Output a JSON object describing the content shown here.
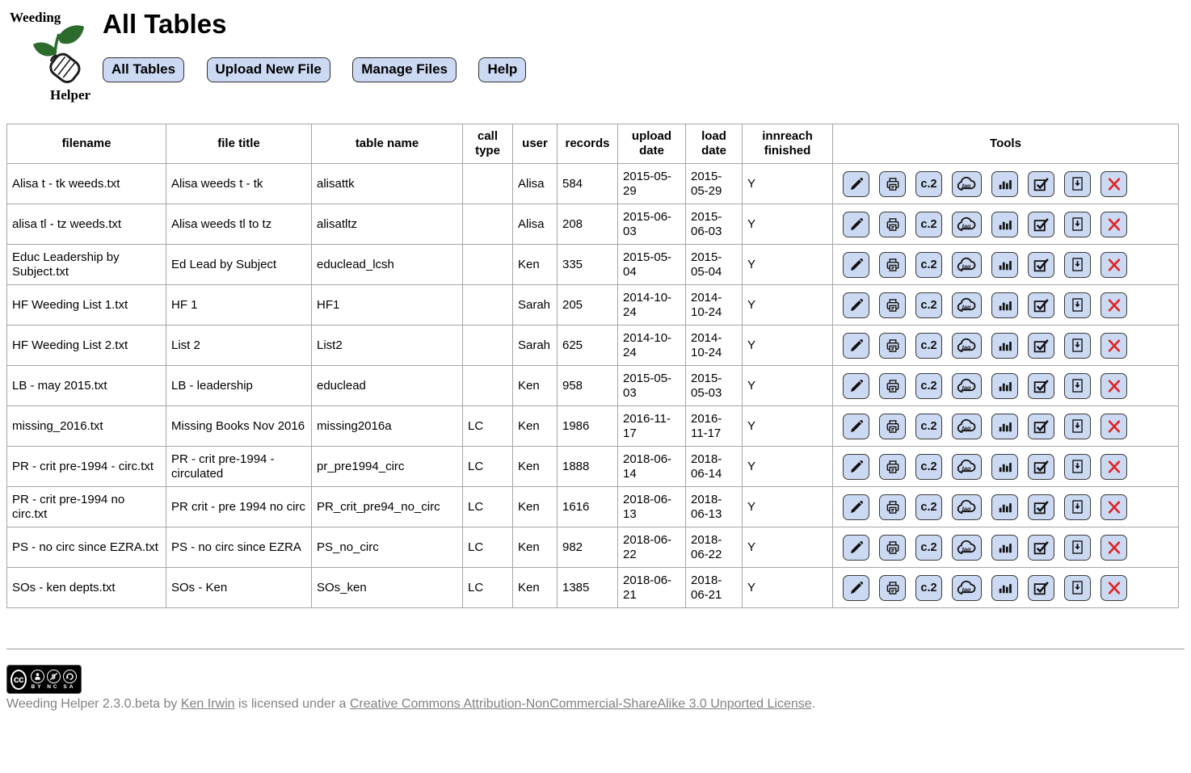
{
  "app": {
    "logo_top": "Weeding",
    "logo_bottom": "Helper"
  },
  "page": {
    "title": "All Tables"
  },
  "nav": {
    "buttons": [
      {
        "label": "All Tables"
      },
      {
        "label": "Upload New File"
      },
      {
        "label": "Manage Files"
      },
      {
        "label": "Help"
      }
    ]
  },
  "colors": {
    "button_bg": "#ccd9f2",
    "button_border": "#2f2f2f",
    "table_border": "#a6a6a6",
    "delete_red": "#e02424",
    "leaf_green": "#2d6b2d",
    "footer_text": "#818181"
  },
  "table": {
    "headers": [
      "filename",
      "file title",
      "table name",
      "call type",
      "user",
      "records",
      "upload date",
      "load date",
      "innreach finished",
      "Tools"
    ],
    "tools": [
      {
        "name": "edit",
        "icon": "pencil-icon",
        "label": ""
      },
      {
        "name": "print",
        "icon": "printer-icon",
        "label": ""
      },
      {
        "name": "copy2",
        "icon": "c2-icon",
        "label": "c.2"
      },
      {
        "name": "tag-cloud",
        "icon": "tag-cloud-icon",
        "label": "tag"
      },
      {
        "name": "stats",
        "icon": "bar-chart-icon",
        "label": ""
      },
      {
        "name": "checklist",
        "icon": "checkbox-icon",
        "label": ""
      },
      {
        "name": "download",
        "icon": "download-icon",
        "label": ""
      },
      {
        "name": "delete",
        "icon": "delete-x-icon",
        "label": ""
      }
    ],
    "rows": [
      {
        "filename": "Alisa t - tk weeds.txt",
        "file_title": "Alisa weeds t - tk",
        "table_name": "alisattk",
        "call_type": "",
        "user": "Alisa",
        "records": "584",
        "upload_date": "2015-05-29",
        "load_date": "2015-05-29",
        "innreach_finished": "Y"
      },
      {
        "filename": "alisa tl - tz weeds.txt",
        "file_title": "Alisa weeds tl to tz",
        "table_name": "alisatltz",
        "call_type": "",
        "user": "Alisa",
        "records": "208",
        "upload_date": "2015-06-03",
        "load_date": "2015-06-03",
        "innreach_finished": "Y"
      },
      {
        "filename": "Educ Leadership by Subject.txt",
        "file_title": "Ed Lead by Subject",
        "table_name": "educlead_lcsh",
        "call_type": "",
        "user": "Ken",
        "records": "335",
        "upload_date": "2015-05-04",
        "load_date": "2015-05-04",
        "innreach_finished": "Y"
      },
      {
        "filename": "HF Weeding List 1.txt",
        "file_title": "HF 1",
        "table_name": "HF1",
        "call_type": "",
        "user": "Sarah",
        "records": "205",
        "upload_date": "2014-10-24",
        "load_date": "2014-10-24",
        "innreach_finished": "Y"
      },
      {
        "filename": "HF Weeding List 2.txt",
        "file_title": "List 2",
        "table_name": "List2",
        "call_type": "",
        "user": "Sarah",
        "records": "625",
        "upload_date": "2014-10-24",
        "load_date": "2014-10-24",
        "innreach_finished": "Y"
      },
      {
        "filename": "LB - may 2015.txt",
        "file_title": "LB - leadership",
        "table_name": "educlead",
        "call_type": "",
        "user": "Ken",
        "records": "958",
        "upload_date": "2015-05-03",
        "load_date": "2015-05-03",
        "innreach_finished": "Y"
      },
      {
        "filename": "missing_2016.txt",
        "file_title": "Missing Books Nov 2016",
        "table_name": "missing2016a",
        "call_type": "LC",
        "user": "Ken",
        "records": "1986",
        "upload_date": "2016-11-17",
        "load_date": "2016-11-17",
        "innreach_finished": "Y"
      },
      {
        "filename": "PR - crit pre-1994 - circ.txt",
        "file_title": "PR - crit pre-1994 - circulated",
        "table_name": "pr_pre1994_circ",
        "call_type": "LC",
        "user": "Ken",
        "records": "1888",
        "upload_date": "2018-06-14",
        "load_date": "2018-06-14",
        "innreach_finished": "Y"
      },
      {
        "filename": "PR - crit pre-1994 no circ.txt",
        "file_title": "PR crit - pre 1994 no circ",
        "table_name": "PR_crit_pre94_no_circ",
        "call_type": "LC",
        "user": "Ken",
        "records": "1616",
        "upload_date": "2018-06-13",
        "load_date": "2018-06-13",
        "innreach_finished": "Y"
      },
      {
        "filename": "PS - no circ since EZRA.txt",
        "file_title": "PS - no circ since EZRA",
        "table_name": "PS_no_circ",
        "call_type": "LC",
        "user": "Ken",
        "records": "982",
        "upload_date": "2018-06-22",
        "load_date": "2018-06-22",
        "innreach_finished": "Y"
      },
      {
        "filename": "SOs - ken depts.txt",
        "file_title": "SOs - Ken",
        "table_name": "SOs_ken",
        "call_type": "LC",
        "user": "Ken",
        "records": "1385",
        "upload_date": "2018-06-21",
        "load_date": "2018-06-21",
        "innreach_finished": "Y"
      }
    ]
  },
  "footer": {
    "cc_badge": {
      "label": "cc",
      "terms": "BY NC SA"
    },
    "text_prefix": "Weeding Helper 2.3.0.beta by ",
    "author_link": "Ken Irwin",
    "text_middle": " is licensed under a ",
    "license_link": "Creative Commons Attribution-NonCommercial-ShareAlike 3.0 Unported License",
    "text_suffix": "."
  }
}
